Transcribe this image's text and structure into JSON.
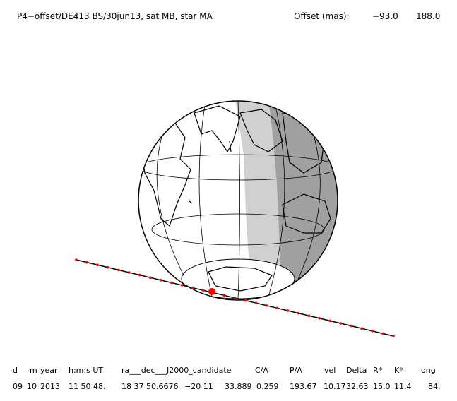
{
  "header": {
    "title": "P4−offset/DE413 BS/30jun13, sat MB, star MA",
    "offset_label": "Offset (mas):",
    "offset_values": [
      "−93.0",
      "188.0"
    ]
  },
  "table": {
    "headers": [
      "d",
      "m",
      "year",
      "h:m:s UT",
      "ra___dec___J2000_candidate",
      "C/A",
      "P/A",
      "vel",
      "Delta",
      "R*",
      "K*",
      "long"
    ],
    "row": [
      "09",
      "10",
      "2013",
      "11 50 48.",
      "18 37 50.6676",
      "−20 11",
      "33.889",
      "0.259",
      "193.67",
      "10.17",
      "32.63",
      "15.0",
      "11.4",
      "84."
    ]
  }
}
